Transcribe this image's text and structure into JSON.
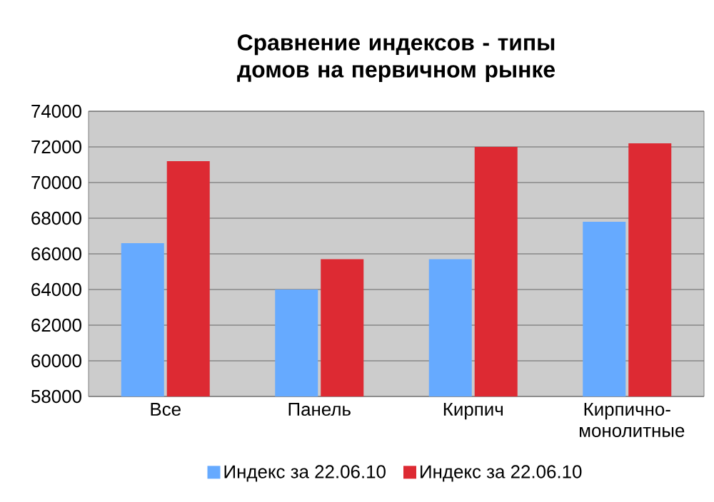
{
  "chart_data": {
    "type": "bar",
    "title": "Сравнение индексов - типы домов на первичном рынке",
    "categories": [
      "Все",
      "Панель",
      "Кирпич",
      "Кирпично-монолитные"
    ],
    "series": [
      {
        "name": "Индекс за 22.06.10",
        "color": "#66aaff",
        "values": [
          66600,
          64000,
          65700,
          67800
        ]
      },
      {
        "name": "Индекс за 22.06.10",
        "color": "#dd2a33",
        "values": [
          71200,
          65700,
          72000,
          72200
        ]
      }
    ],
    "ylim": [
      58000,
      74000
    ],
    "yticks": [
      58000,
      60000,
      62000,
      64000,
      66000,
      68000,
      70000,
      72000,
      74000
    ],
    "grid": "y",
    "legend": "bottom"
  }
}
